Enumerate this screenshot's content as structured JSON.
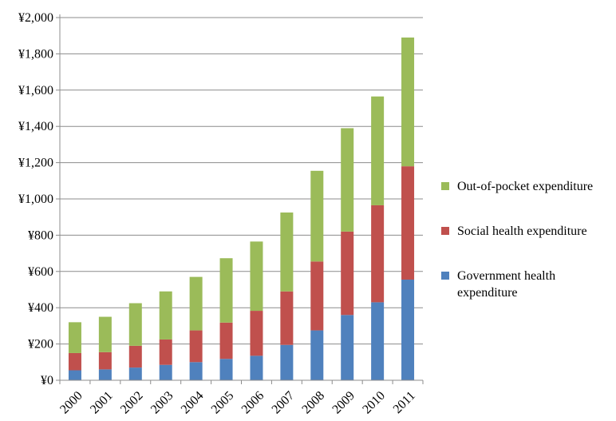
{
  "chart_data": {
    "type": "bar",
    "stacked": true,
    "title": "",
    "xlabel": "",
    "ylabel": "",
    "ylim": [
      0,
      2000
    ],
    "ytick_values": [
      0,
      200,
      400,
      600,
      800,
      1000,
      1200,
      1400,
      1600,
      1800,
      2000
    ],
    "ytick_labels": [
      "¥0",
      "¥200",
      "¥400",
      "¥600",
      "¥800",
      "¥1,000",
      "¥1,200",
      "¥1,400",
      "¥1,600",
      "¥1,800",
      "¥2,000"
    ],
    "grid": true,
    "legend_position": "right",
    "categories": [
      "2000",
      "2001",
      "2002",
      "2003",
      "2004",
      "2005",
      "2006",
      "2007",
      "2008",
      "2009",
      "2010",
      "2011"
    ],
    "series": [
      {
        "name": "Government health expenditure",
        "color": "#4f81bd",
        "values": [
          55,
          60,
          70,
          85,
          100,
          118,
          135,
          195,
          275,
          360,
          430,
          555
        ]
      },
      {
        "name": "Social health expenditure",
        "color": "#c0504d",
        "values": [
          95,
          95,
          120,
          140,
          175,
          200,
          248,
          295,
          380,
          460,
          535,
          625
        ]
      },
      {
        "name": "Out-of-pocket expenditure",
        "color": "#9bbb59",
        "values": [
          170,
          195,
          235,
          265,
          295,
          355,
          382,
          435,
          500,
          570,
          600,
          710
        ]
      }
    ]
  },
  "legend": {
    "items": [
      {
        "label": "Out-of-pocket expenditure",
        "color": "#9bbb59"
      },
      {
        "label": "Social health expenditure",
        "color": "#c0504d"
      },
      {
        "label": "Government health expenditure",
        "color": "#4f81bd"
      }
    ]
  }
}
